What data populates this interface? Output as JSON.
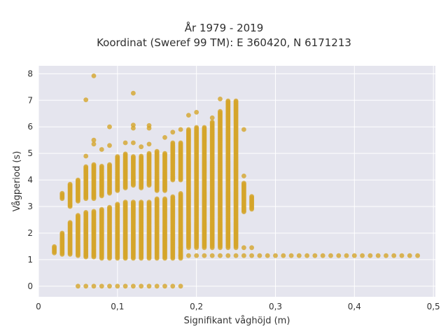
{
  "chart_data": {
    "type": "scatter",
    "title_line1": "År 1979 - 2019",
    "title_line2": "Koordinat (Sweref 99 TM): E 360420, N 6171213",
    "xlabel": "Signifikant våghöjd (m)",
    "ylabel": "Vågperiod (s)",
    "xlim": [
      0,
      0.5
    ],
    "ylim": [
      -0.4,
      8.3
    ],
    "x_ticks": [
      0,
      0.1,
      0.2,
      0.3,
      0.4,
      0.5
    ],
    "x_tick_labels": [
      "0",
      "0,1",
      "0,2",
      "0,3",
      "0,4",
      "0,5"
    ],
    "y_ticks": [
      0,
      1,
      2,
      3,
      4,
      5,
      6,
      7,
      8
    ],
    "y_tick_labels": [
      "0",
      "1",
      "2",
      "3",
      "4",
      "5",
      "6",
      "7",
      "8"
    ],
    "grid": true,
    "marker_color": "#d4a52a",
    "background_color": "#e5e5ee",
    "columns": [
      {
        "x": 0.02,
        "ranges": [
          [
            1.25,
            1.5
          ]
        ]
      },
      {
        "x": 0.03,
        "ranges": [
          [
            1.2,
            2.0
          ],
          [
            3.3,
            3.5
          ]
        ]
      },
      {
        "x": 0.04,
        "ranges": [
          [
            1.2,
            2.4
          ],
          [
            3.0,
            3.85
          ]
        ]
      },
      {
        "x": 0.05,
        "ranges": [
          [
            1.15,
            2.7
          ],
          [
            3.2,
            4.0
          ]
        ]
      },
      {
        "x": 0.06,
        "ranges": [
          [
            1.1,
            2.8
          ],
          [
            3.3,
            4.5
          ]
        ]
      },
      {
        "x": 0.07,
        "ranges": [
          [
            1.1,
            2.85
          ],
          [
            3.3,
            4.6
          ]
        ]
      },
      {
        "x": 0.08,
        "ranges": [
          [
            1.05,
            2.9
          ],
          [
            3.4,
            4.55
          ]
        ]
      },
      {
        "x": 0.09,
        "ranges": [
          [
            1.05,
            3.0
          ],
          [
            3.5,
            4.6
          ]
        ]
      },
      {
        "x": 0.1,
        "ranges": [
          [
            1.05,
            3.1
          ],
          [
            3.6,
            4.9
          ]
        ]
      },
      {
        "x": 0.11,
        "ranges": [
          [
            1.05,
            3.2
          ],
          [
            3.7,
            5.0
          ]
        ]
      },
      {
        "x": 0.12,
        "ranges": [
          [
            1.05,
            3.2
          ],
          [
            3.8,
            4.9
          ]
        ]
      },
      {
        "x": 0.13,
        "ranges": [
          [
            1.05,
            3.2
          ],
          [
            3.7,
            4.9
          ]
        ]
      },
      {
        "x": 0.14,
        "ranges": [
          [
            1.05,
            3.2
          ],
          [
            3.8,
            5.0
          ]
        ]
      },
      {
        "x": 0.15,
        "ranges": [
          [
            1.05,
            3.3
          ],
          [
            3.6,
            5.1
          ]
        ]
      },
      {
        "x": 0.16,
        "ranges": [
          [
            1.05,
            3.3
          ],
          [
            3.6,
            5.0
          ]
        ]
      },
      {
        "x": 0.17,
        "ranges": [
          [
            1.05,
            3.4
          ],
          [
            4.0,
            5.4
          ]
        ]
      },
      {
        "x": 0.18,
        "ranges": [
          [
            1.05,
            3.5
          ],
          [
            4.0,
            5.4
          ]
        ]
      },
      {
        "x": 0.19,
        "ranges": [
          [
            1.5,
            5.9
          ]
        ]
      },
      {
        "x": 0.2,
        "ranges": [
          [
            1.5,
            6.0
          ]
        ]
      },
      {
        "x": 0.21,
        "ranges": [
          [
            1.5,
            6.0
          ]
        ]
      },
      {
        "x": 0.22,
        "ranges": [
          [
            1.5,
            6.2
          ]
        ]
      },
      {
        "x": 0.23,
        "ranges": [
          [
            1.5,
            6.6
          ]
        ]
      },
      {
        "x": 0.24,
        "ranges": [
          [
            1.5,
            7.0
          ]
        ]
      },
      {
        "x": 0.25,
        "ranges": [
          [
            1.5,
            7.0
          ]
        ]
      },
      {
        "x": 0.26,
        "ranges": [
          [
            2.8,
            3.9
          ]
        ]
      },
      {
        "x": 0.27,
        "ranges": [
          [
            2.9,
            3.4
          ]
        ]
      }
    ],
    "tail_band": {
      "x_start": 0.18,
      "x_end": 0.48,
      "x_step": 0.01,
      "y": 1.15
    },
    "secondary_band": {
      "x_start": 0.18,
      "x_end": 0.27,
      "x_step": 0.01,
      "y": 1.45
    },
    "low_band": {
      "x_start": 0.05,
      "x_end": 0.17,
      "x_step": 0.01,
      "y": 0.0
    },
    "outliers": [
      {
        "x": 0.07,
        "y": 7.92
      },
      {
        "x": 0.06,
        "y": 7.02
      },
      {
        "x": 0.12,
        "y": 7.27
      },
      {
        "x": 0.09,
        "y": 6.0
      },
      {
        "x": 0.12,
        "y": 6.07
      },
      {
        "x": 0.12,
        "y": 5.95
      },
      {
        "x": 0.14,
        "y": 6.05
      },
      {
        "x": 0.14,
        "y": 5.95
      },
      {
        "x": 0.17,
        "y": 5.8
      },
      {
        "x": 0.18,
        "y": 5.9
      },
      {
        "x": 0.19,
        "y": 6.44
      },
      {
        "x": 0.2,
        "y": 6.55
      },
      {
        "x": 0.22,
        "y": 6.34
      },
      {
        "x": 0.23,
        "y": 7.05
      },
      {
        "x": 0.26,
        "y": 5.9
      },
      {
        "x": 0.26,
        "y": 4.15
      },
      {
        "x": 0.07,
        "y": 5.5
      },
      {
        "x": 0.07,
        "y": 5.35
      },
      {
        "x": 0.08,
        "y": 5.15
      },
      {
        "x": 0.09,
        "y": 5.3
      },
      {
        "x": 0.11,
        "y": 5.4
      },
      {
        "x": 0.12,
        "y": 5.4
      },
      {
        "x": 0.13,
        "y": 5.25
      },
      {
        "x": 0.14,
        "y": 5.35
      },
      {
        "x": 0.16,
        "y": 5.6
      },
      {
        "x": 0.06,
        "y": 4.9
      },
      {
        "x": 0.18,
        "y": 0.0
      }
    ]
  }
}
